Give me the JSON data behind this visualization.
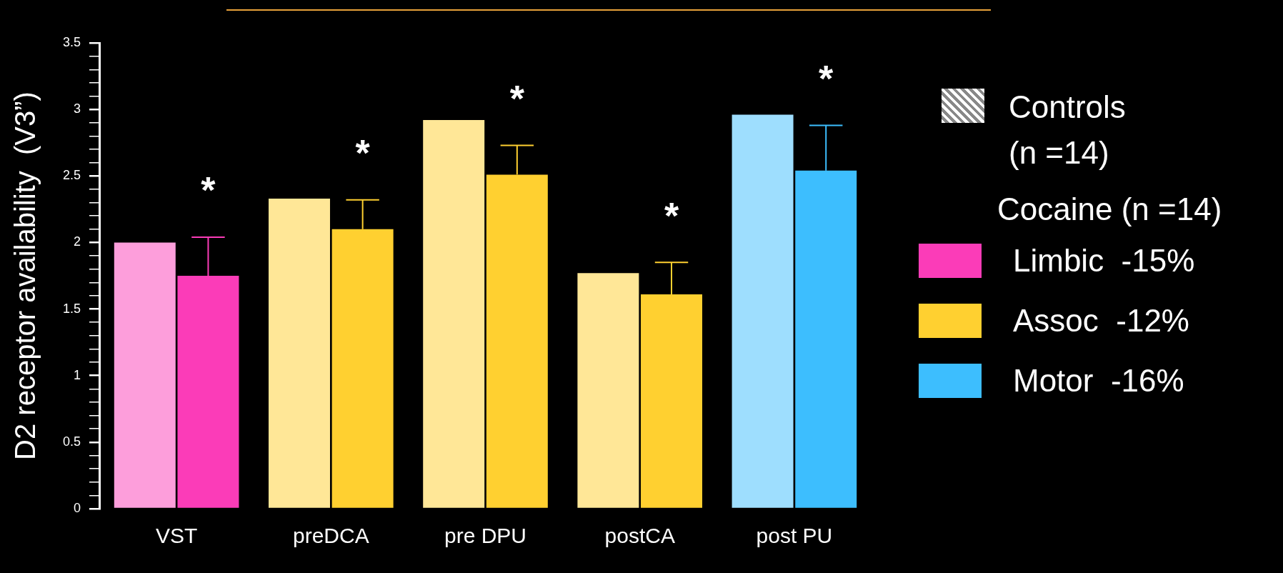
{
  "chart_data": {
    "type": "bar",
    "ylabel": "D2 receptor availability  (V3”)",
    "categories": [
      "VST",
      "preDCA",
      "pre DPU",
      "postCA",
      "post PU"
    ],
    "series": [
      {
        "name": "Controls (n =14)",
        "colors": [
          "#fd9edb",
          "#ffe797",
          "#ffe797",
          "#ffe797",
          "#9edefe"
        ],
        "values": [
          2.0,
          2.33,
          2.92,
          1.77,
          2.96
        ]
      },
      {
        "name": "Cocaine (n =14)",
        "colors": [
          "#fb3cb8",
          "#ffd030",
          "#ffd030",
          "#ffd030",
          "#3dbefe"
        ],
        "values": [
          1.75,
          2.1,
          2.51,
          1.61,
          2.54
        ],
        "errors": [
          [
            1.75,
            2.04
          ],
          [
            2.1,
            2.32
          ],
          [
            2.51,
            2.73
          ],
          [
            1.61,
            1.85
          ],
          [
            2.54,
            2.88
          ]
        ]
      }
    ],
    "ylim": [
      0,
      3.5
    ],
    "yticks": [
      0,
      {
        "value": 0.1,
        "label": null
      },
      {
        "value": 0.2,
        "label": null
      },
      {
        "value": 0.3,
        "label": null
      },
      {
        "value": 0.4,
        "label": null
      },
      0.5,
      {
        "value": 0.6,
        "label": null
      },
      {
        "value": 0.7,
        "label": null
      },
      {
        "value": 0.8,
        "label": null
      },
      {
        "value": 0.9,
        "label": null
      },
      1,
      {
        "value": 1.1,
        "label": null
      },
      {
        "value": 1.2,
        "label": null
      },
      {
        "value": 1.3,
        "label": null
      },
      {
        "value": 1.4,
        "label": null
      },
      1.5,
      {
        "value": 1.6,
        "label": null
      },
      {
        "value": 1.7,
        "label": null
      },
      {
        "value": 1.8,
        "label": null
      },
      {
        "value": 1.9,
        "label": null
      },
      2,
      {
        "value": 2.1,
        "label": null
      },
      {
        "value": 2.2,
        "label": null
      },
      {
        "value": 2.3,
        "label": null
      },
      {
        "value": 2.4,
        "label": null
      },
      2.5,
      {
        "value": 2.6,
        "label": null
      },
      {
        "value": 2.7,
        "label": null
      },
      {
        "value": 2.8,
        "label": null
      },
      {
        "value": 2.9,
        "label": null
      },
      3,
      {
        "value": 3.1,
        "label": null
      },
      {
        "value": 3.2,
        "label": null
      },
      {
        "value": 3.3,
        "label": null
      },
      {
        "value": 3.4,
        "label": null
      },
      3.5
    ],
    "legend": "right",
    "grid": false,
    "annotations": [
      "*",
      "*",
      "*",
      "*",
      "*",
      "Limbic  -15%",
      "Assoc  -12%",
      "Motor  -16%"
    ]
  }
}
